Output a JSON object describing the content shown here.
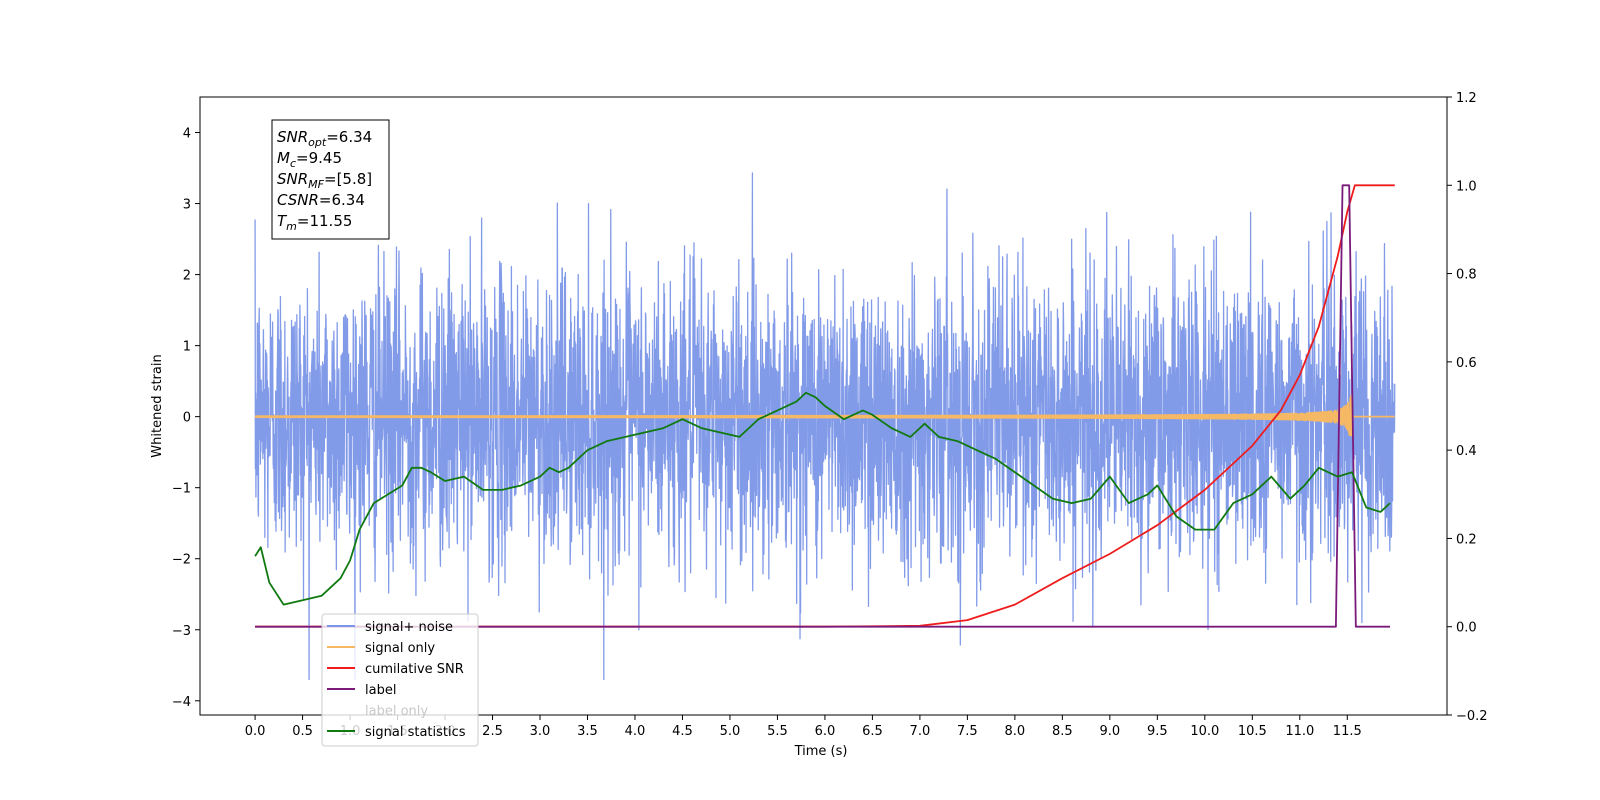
{
  "chart_data": {
    "type": "line",
    "xlabel": "Time (s)",
    "ylabel": "Whitened strain",
    "xlim": [
      -0.58,
      12.55
    ],
    "ylim": [
      -4.2,
      4.5
    ],
    "y2lim": [
      -0.2,
      1.2
    ],
    "xticks": [
      "0.0",
      "0.5",
      "1.0",
      "1.5",
      "2.0",
      "2.5",
      "3.0",
      "3.5",
      "4.0",
      "4.5",
      "5.0",
      "5.5",
      "6.0",
      "6.5",
      "7.0",
      "7.5",
      "8.0",
      "8.5",
      "9.0",
      "9.5",
      "10.0",
      "10.5",
      "11.0",
      "11.5"
    ],
    "yticks": [
      "−4",
      "−3",
      "−2",
      "−1",
      "0",
      "1",
      "2",
      "3",
      "4"
    ],
    "y2ticks": [
      "−0.2",
      "0.0",
      "0.2",
      "0.4",
      "0.6",
      "0.8",
      "1.0",
      "1.2"
    ],
    "legend_placement": "lower-left",
    "grid": false,
    "annotation": {
      "lines": [
        {
          "base": "SNR",
          "sub": "opt",
          "rest": "=6.34"
        },
        {
          "base": "M",
          "sub": "c",
          "rest": "=9.45"
        },
        {
          "base": "SNR",
          "sub": "MF",
          "rest": "=[5.8]"
        },
        {
          "base": "CSNR",
          "sub": "",
          "rest": "=6.34"
        },
        {
          "base": "T",
          "sub": "m",
          "rest": "=11.55"
        }
      ]
    },
    "series": [
      {
        "name": "signal+ noise",
        "color": "#7b96e8",
        "axis": "left",
        "kind": "noise",
        "noise_std": 1.0,
        "x_range": [
          0.0,
          12.0
        ]
      },
      {
        "name": "signal only",
        "color": "#f5b865",
        "axis": "left",
        "kind": "chirp",
        "merger_time": 11.55,
        "peak_amplitude": 0.45,
        "x_range": [
          0.0,
          12.0
        ]
      },
      {
        "name": "cumilative SNR",
        "color": "#ee1c1c",
        "axis": "right",
        "x": [
          0.0,
          6.0,
          7.0,
          7.5,
          8.0,
          8.5,
          9.0,
          9.5,
          10.0,
          10.5,
          10.8,
          11.0,
          11.2,
          11.4,
          11.5,
          11.58,
          12.0
        ],
        "values": [
          0.0,
          0.0,
          0.002,
          0.015,
          0.05,
          0.11,
          0.165,
          0.23,
          0.31,
          0.41,
          0.49,
          0.57,
          0.68,
          0.84,
          0.94,
          1.0,
          1.0
        ]
      },
      {
        "name": "label",
        "color": "#7a1a7a",
        "axis": "right",
        "x": [
          0.0,
          11.38,
          11.45,
          11.52,
          11.59,
          11.95
        ],
        "values": [
          0.0,
          0.0,
          1.0,
          1.0,
          0.0,
          0.0
        ]
      },
      {
        "name": "label only",
        "color": "#cccccc",
        "axis": "right",
        "hidden": true,
        "x": [],
        "values": []
      },
      {
        "name": "signal statistics",
        "color": "#107a10",
        "axis": "right",
        "x": [
          0.0,
          0.06,
          0.15,
          0.3,
          0.5,
          0.7,
          0.9,
          1.0,
          1.1,
          1.25,
          1.4,
          1.55,
          1.65,
          1.75,
          1.85,
          2.0,
          2.2,
          2.4,
          2.6,
          2.8,
          3.0,
          3.1,
          3.2,
          3.3,
          3.5,
          3.7,
          3.9,
          4.1,
          4.3,
          4.5,
          4.7,
          4.9,
          5.1,
          5.3,
          5.5,
          5.7,
          5.8,
          5.9,
          6.0,
          6.2,
          6.4,
          6.5,
          6.7,
          6.9,
          7.05,
          7.2,
          7.4,
          7.6,
          7.8,
          8.0,
          8.2,
          8.4,
          8.6,
          8.8,
          9.0,
          9.2,
          9.4,
          9.5,
          9.7,
          9.9,
          10.1,
          10.3,
          10.5,
          10.7,
          10.9,
          11.05,
          11.2,
          11.4,
          11.55,
          11.7,
          11.85,
          11.95
        ],
        "values": [
          0.16,
          0.18,
          0.1,
          0.05,
          0.06,
          0.07,
          0.11,
          0.15,
          0.22,
          0.28,
          0.3,
          0.32,
          0.36,
          0.36,
          0.35,
          0.33,
          0.34,
          0.31,
          0.31,
          0.32,
          0.34,
          0.36,
          0.35,
          0.36,
          0.4,
          0.42,
          0.43,
          0.44,
          0.45,
          0.47,
          0.45,
          0.44,
          0.43,
          0.47,
          0.49,
          0.51,
          0.53,
          0.52,
          0.5,
          0.47,
          0.49,
          0.48,
          0.45,
          0.43,
          0.46,
          0.43,
          0.42,
          0.4,
          0.38,
          0.35,
          0.32,
          0.29,
          0.28,
          0.29,
          0.34,
          0.28,
          0.3,
          0.32,
          0.25,
          0.22,
          0.22,
          0.28,
          0.3,
          0.34,
          0.29,
          0.32,
          0.36,
          0.34,
          0.35,
          0.27,
          0.26,
          0.28
        ]
      }
    ]
  }
}
